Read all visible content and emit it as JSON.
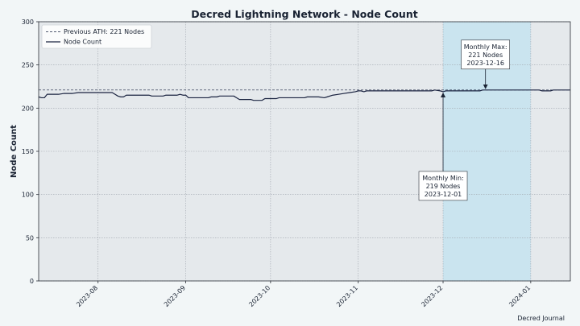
{
  "chart_data": {
    "type": "line",
    "title": "Decred Lightning Network - Node Count",
    "xlabel": "",
    "ylabel": "Node Count",
    "ylim": [
      0,
      300
    ],
    "yticks": [
      0,
      50,
      100,
      150,
      200,
      250,
      300
    ],
    "xlim": [
      "2023-07-11",
      "2024-01-15"
    ],
    "xticks": [
      {
        "date": "2023-08-01",
        "label": "2023-08"
      },
      {
        "date": "2023-09-01",
        "label": "2023-09"
      },
      {
        "date": "2023-10-01",
        "label": "2023-10"
      },
      {
        "date": "2023-11-01",
        "label": "2023-11"
      },
      {
        "date": "2023-12-01",
        "label": "2023-12"
      },
      {
        "date": "2024-01-01",
        "label": "2024-01"
      }
    ],
    "grid": true,
    "legend_position": "top-left",
    "series": [
      {
        "name": "Node Count",
        "color": "#1a2340",
        "points": [
          [
            "2023-07-11",
            213
          ],
          [
            "2023-07-12",
            212
          ],
          [
            "2023-07-13",
            212
          ],
          [
            "2023-07-14",
            216
          ],
          [
            "2023-07-16",
            216
          ],
          [
            "2023-07-18",
            216
          ],
          [
            "2023-07-20",
            217
          ],
          [
            "2023-07-23",
            217
          ],
          [
            "2023-07-25",
            218
          ],
          [
            "2023-07-28",
            218
          ],
          [
            "2023-08-01",
            218
          ],
          [
            "2023-08-05",
            218
          ],
          [
            "2023-08-06",
            218
          ],
          [
            "2023-08-07",
            216
          ],
          [
            "2023-08-08",
            214
          ],
          [
            "2023-08-09",
            213
          ],
          [
            "2023-08-10",
            213
          ],
          [
            "2023-08-11",
            215
          ],
          [
            "2023-08-15",
            215
          ],
          [
            "2023-08-19",
            215
          ],
          [
            "2023-08-20",
            214
          ],
          [
            "2023-08-24",
            214
          ],
          [
            "2023-08-25",
            215
          ],
          [
            "2023-08-29",
            215
          ],
          [
            "2023-08-30",
            216
          ],
          [
            "2023-08-31",
            215
          ],
          [
            "2023-09-01",
            215
          ],
          [
            "2023-09-02",
            212
          ],
          [
            "2023-09-06",
            212
          ],
          [
            "2023-09-09",
            212
          ],
          [
            "2023-09-10",
            213
          ],
          [
            "2023-09-12",
            213
          ],
          [
            "2023-09-13",
            214
          ],
          [
            "2023-09-18",
            214
          ],
          [
            "2023-09-19",
            212
          ],
          [
            "2023-09-20",
            210
          ],
          [
            "2023-09-24",
            210
          ],
          [
            "2023-09-25",
            209
          ],
          [
            "2023-09-28",
            209
          ],
          [
            "2023-09-29",
            211
          ],
          [
            "2023-10-03",
            211
          ],
          [
            "2023-10-04",
            212
          ],
          [
            "2023-10-08",
            212
          ],
          [
            "2023-10-13",
            212
          ],
          [
            "2023-10-14",
            213
          ],
          [
            "2023-10-18",
            213
          ],
          [
            "2023-10-20",
            212
          ],
          [
            "2023-10-21",
            213
          ],
          [
            "2023-10-23",
            215
          ],
          [
            "2023-10-25",
            216
          ],
          [
            "2023-10-27",
            217
          ],
          [
            "2023-10-29",
            218
          ],
          [
            "2023-10-31",
            219
          ],
          [
            "2023-11-01",
            220
          ],
          [
            "2023-11-02",
            220
          ],
          [
            "2023-11-03",
            219
          ],
          [
            "2023-11-04",
            220
          ],
          [
            "2023-11-10",
            220
          ],
          [
            "2023-11-20",
            220
          ],
          [
            "2023-11-27",
            220
          ],
          [
            "2023-11-28",
            221
          ],
          [
            "2023-11-30",
            220
          ],
          [
            "2023-12-01",
            219
          ],
          [
            "2023-12-02",
            220
          ],
          [
            "2023-12-08",
            220
          ],
          [
            "2023-12-14",
            220
          ],
          [
            "2023-12-15",
            221
          ],
          [
            "2023-12-16",
            221
          ],
          [
            "2023-12-22",
            221
          ],
          [
            "2023-12-29",
            221
          ],
          [
            "2024-01-01",
            221
          ],
          [
            "2024-01-04",
            221
          ],
          [
            "2024-01-05",
            220
          ],
          [
            "2024-01-08",
            220
          ],
          [
            "2024-01-09",
            221
          ],
          [
            "2024-01-15",
            221
          ]
        ]
      }
    ],
    "reference_line": {
      "label": "Previous ATH: 221 Nodes",
      "value": 221,
      "color": "#1a2340",
      "style": "dashed"
    },
    "highlight_span": {
      "start": "2023-12-01",
      "end": "2024-01-01",
      "color": "#c8e4ef"
    },
    "annotations": [
      {
        "id": "max",
        "lines": [
          "Monthly Max:",
          "221 Nodes",
          "2023-12-16"
        ],
        "point": [
          "2023-12-16",
          221
        ],
        "text_at": [
          "2023-12-16",
          262
        ]
      },
      {
        "id": "min",
        "lines": [
          "Monthly Min:",
          "219 Nodes",
          "2023-12-01"
        ],
        "point": [
          "2023-12-01",
          219
        ],
        "text_at": [
          "2023-12-01",
          110
        ]
      }
    ],
    "colors": {
      "page_bg": "#f2f6f7",
      "plot_bg": "#e5e9ec",
      "text": "#1a2333",
      "grid": "#a0a6ae"
    }
  },
  "footer": {
    "source": "Decred Journal"
  }
}
